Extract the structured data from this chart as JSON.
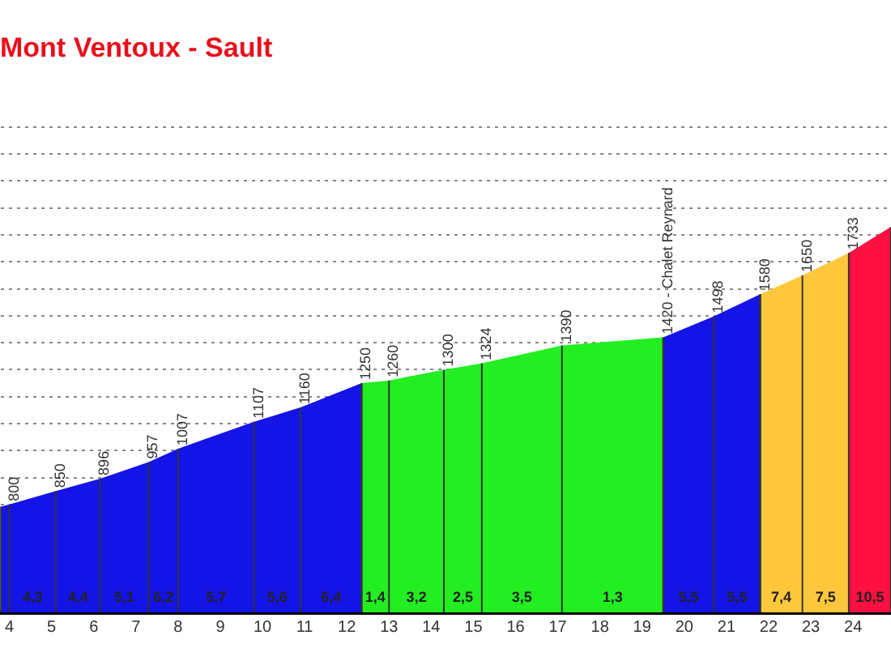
{
  "chart_data": {
    "type": "area",
    "title": "Mont Ventoux - Sault",
    "series": [
      {
        "color": "#1414e6",
        "x": [
          3.8,
          4.0,
          5.1,
          6.15,
          7.3,
          8.0,
          9.8,
          10.9,
          12.35
        ],
        "values": [
          792,
          800,
          850,
          896,
          957,
          1007,
          1107,
          1160,
          1250
        ],
        "value_labels": [
          null,
          "800",
          "850",
          "896",
          "957",
          "1007",
          "1107",
          "1160",
          "1250"
        ]
      },
      {
        "color": "#22ee22",
        "x": [
          12.35,
          13.0,
          14.3,
          15.2,
          17.1,
          19.5
        ],
        "values": [
          1250,
          1260,
          1300,
          1324,
          1390,
          1420
        ],
        "value_labels": [
          null,
          "1260",
          "1300",
          "1324",
          "1390",
          "1420 - Chalet Reynard"
        ]
      },
      {
        "color": "#1414e6",
        "x": [
          19.5,
          20.7,
          21.8
        ],
        "values": [
          1420,
          1498,
          1580
        ],
        "value_labels": [
          null,
          "1498",
          "1580"
        ]
      },
      {
        "color": "#ffc83c",
        "x": [
          21.8,
          22.8,
          23.9
        ],
        "values": [
          1580,
          1650,
          1733
        ],
        "value_labels": [
          null,
          "1650",
          "1733"
        ]
      },
      {
        "color": "#ff1040",
        "x": [
          23.9,
          24.9
        ],
        "values": [
          1733,
          1830
        ],
        "value_labels": [
          null,
          null
        ]
      }
    ],
    "annotations": [
      "4,3",
      "4,4",
      "5,1",
      "6,2",
      "5,7",
      "5,6",
      "6,4",
      "1,4",
      "3,2",
      "2,5",
      "3,5",
      "1,3",
      "5,5",
      "5,5",
      "7,4",
      "7,5",
      "10,5"
    ],
    "xlim": [
      3.8,
      24.9
    ],
    "xticks": [
      4,
      5,
      6,
      7,
      8,
      9,
      10,
      11,
      12,
      13,
      14,
      15,
      16,
      17,
      18,
      19,
      20,
      21,
      22,
      23,
      24
    ],
    "grid": "y",
    "tick_labels": "x",
    "legend": false
  }
}
